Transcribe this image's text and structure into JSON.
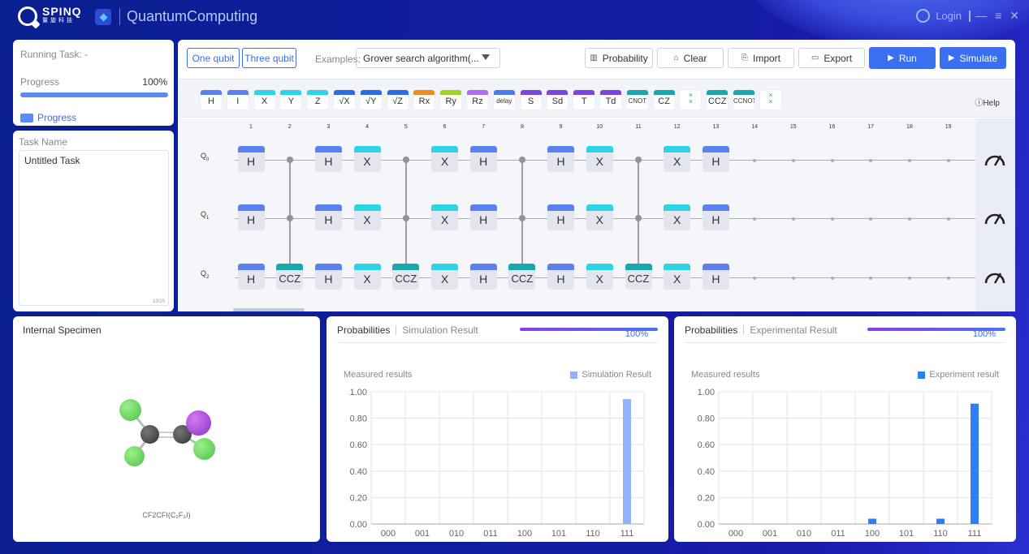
{
  "titlebar": {
    "brand": "SPINQ",
    "brand_sub": "量旋科技",
    "title": "QuantumComputing",
    "login": "Login"
  },
  "running": {
    "task_label": "Running Task: -",
    "progress_label": "Progress",
    "progress_value": "100%",
    "progress_fraction": 1.0,
    "progress_link": "Progress"
  },
  "task": {
    "label": "Task Name",
    "value": "Untitled Task",
    "counter": "13/20"
  },
  "toolbar": {
    "one_qubit": "One qubit",
    "three_qubit": "Three qubit",
    "examples_label": "Examples:",
    "example_selected": "Grover search algorithm(...",
    "probability": "Probability",
    "clear": "Clear",
    "import": "Import",
    "export": "Export",
    "run": "Run",
    "simulate": "Simulate",
    "help": "Help"
  },
  "palette": [
    {
      "label": "H",
      "color": "#5b80f0"
    },
    {
      "label": "I",
      "color": "#5b80f0"
    },
    {
      "label": "X",
      "color": "#2ed3e6"
    },
    {
      "label": "Y",
      "color": "#2ed3e6"
    },
    {
      "label": "Z",
      "color": "#2ed3e6"
    },
    {
      "label": "√X",
      "color": "#2b6be6"
    },
    {
      "label": "√Y",
      "color": "#2b6be6"
    },
    {
      "label": "√Z",
      "color": "#2b6be6"
    },
    {
      "label": "Rx",
      "color": "#f28a22"
    },
    {
      "label": "Ry",
      "color": "#9ed12a"
    },
    {
      "label": "Rz",
      "color": "#b26bf0"
    },
    {
      "label": "delay",
      "color": "#4c7bef"
    },
    {
      "label": "S",
      "color": "#7a45e0"
    },
    {
      "label": "Sd",
      "color": "#7a45e0"
    },
    {
      "label": "T",
      "color": "#7a45e0"
    },
    {
      "label": "Td",
      "color": "#7a45e0"
    },
    {
      "label": "CNOT",
      "color": "#1ca6ad"
    },
    {
      "label": "CZ",
      "color": "#1ca6ad"
    },
    {
      "label": "×\n×",
      "color": "#ffffff"
    },
    {
      "label": "CCZ",
      "color": "#1ca6ad"
    },
    {
      "label": "CCNOT",
      "color": "#1ca6ad"
    },
    {
      "label": "×\n×",
      "color": "#ffffff"
    }
  ],
  "columns": [
    "1",
    "2",
    "3",
    "4",
    "5",
    "6",
    "7",
    "8",
    "9",
    "10",
    "11",
    "12",
    "13",
    "14",
    "15",
    "16",
    "17",
    "18",
    "19"
  ],
  "qubits": [
    {
      "name": "Q",
      "sub": "0"
    },
    {
      "name": "Q",
      "sub": "1"
    },
    {
      "name": "Q",
      "sub": "2"
    }
  ],
  "circuit": {
    "q0": [
      "H",
      "•",
      "H",
      "X",
      "•",
      "X",
      "H",
      "•",
      "H",
      "X",
      "•",
      "X",
      "H"
    ],
    "q1": [
      "H",
      "•",
      "H",
      "X",
      "•",
      "X",
      "H",
      "•",
      "H",
      "X",
      "•",
      "X",
      "H"
    ],
    "q2": [
      "H",
      "CCZ",
      "H",
      "X",
      "CCZ",
      "X",
      "H",
      "CCZ",
      "H",
      "X",
      "CCZ",
      "X",
      "H"
    ]
  },
  "specimen": {
    "title": "Internal Specimen",
    "formula": "CF2CFI(C₂F₃I)"
  },
  "sim": {
    "tab1": "Probabilities",
    "tab2": "Simulation Result",
    "pct": "100%",
    "measured": "Measured results",
    "legend": "Simulation Result",
    "color": "#94b2f7"
  },
  "exp": {
    "tab1": "Probabilities",
    "tab2": "Experimental Result",
    "pct": "100%",
    "measured": "Measured results",
    "legend": "Experiment result",
    "color": "#2f7ef5"
  },
  "chart_data": [
    {
      "type": "bar",
      "categories": [
        "000",
        "001",
        "010",
        "011",
        "100",
        "101",
        "110",
        "111"
      ],
      "series": [
        {
          "name": "Simulation Result",
          "values": [
            0.0,
            0.0,
            0.0,
            0.0,
            0.0,
            0.0,
            0.0,
            0.945
          ]
        }
      ],
      "ylim": [
        0,
        1
      ],
      "yticks": [
        "0.00",
        "0.20",
        "0.40",
        "0.60",
        "0.80",
        "1.00"
      ]
    },
    {
      "type": "bar",
      "categories": [
        "000",
        "001",
        "010",
        "011",
        "100",
        "101",
        "110",
        "111"
      ],
      "series": [
        {
          "name": "Experiment result",
          "values": [
            0.0,
            0.0,
            0.0,
            0.0,
            0.04,
            0.0,
            0.04,
            0.91
          ]
        }
      ],
      "ylim": [
        0,
        1
      ],
      "yticks": [
        "0.00",
        "0.20",
        "0.40",
        "0.60",
        "0.80",
        "1.00"
      ]
    }
  ]
}
